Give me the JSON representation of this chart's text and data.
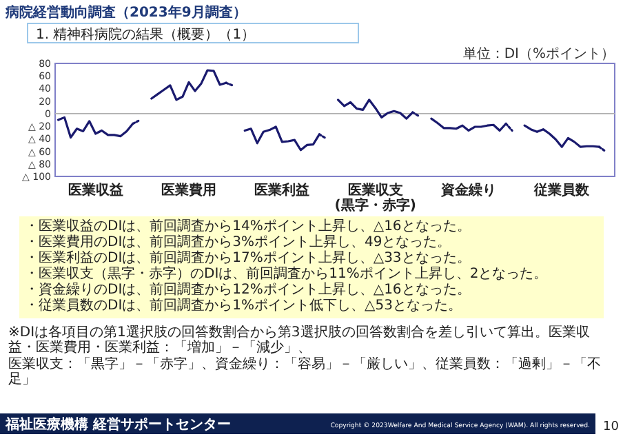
{
  "chart_data": {
    "type": "line",
    "title": "病院経営動向調査（2023年9月調査）",
    "subtitle": "1. 精神科病院の結果（概要）（1）",
    "categories": [
      null,
      null,
      null,
      null,
      null,
      null,
      "医業収益",
      null,
      null,
      null,
      null,
      null,
      null,
      null,
      null,
      null,
      null,
      null,
      null,
      null,
      null,
      "医業費用",
      null,
      null,
      null,
      null,
      null,
      null,
      null,
      null,
      null,
      null,
      null,
      null,
      null,
      null,
      "医業利益",
      null,
      null,
      null,
      null,
      null,
      null,
      null,
      null,
      null,
      null,
      null,
      null,
      null,
      null,
      "医業収支\n(黒字・赤字)",
      null,
      null,
      null,
      null,
      null,
      null,
      null,
      null,
      null,
      null,
      null,
      null,
      null,
      null,
      "資金繰り",
      null,
      null,
      null,
      null,
      null,
      null,
      null,
      null,
      null,
      null,
      null,
      null,
      null,
      null,
      "従業員数",
      null,
      null,
      null,
      null,
      null,
      null,
      null,
      null
    ],
    "ylim": [
      -100,
      80
    ],
    "yticks": [
      80,
      60,
      40,
      20,
      0,
      {
        "value": -20,
        "label": "△ 20"
      },
      {
        "value": -40,
        "label": "△ 40"
      },
      {
        "value": -60,
        "label": "△ 60"
      },
      {
        "value": -80,
        "label": "△ 80"
      },
      {
        "value": -100,
        "label": "△ 100"
      }
    ],
    "ref_lines": [
      {
        "axis": "y",
        "value": 0,
        "color": "#b0b0b0"
      }
    ],
    "series": [
      {
        "color": "#1a1a6e",
        "line_style": "solid",
        "values": [
          -10,
          -6,
          -38,
          -24,
          -28,
          -12,
          -32,
          -27,
          -34,
          -34,
          -36,
          -28,
          -16,
          null,
          null,
          null,
          null,
          null,
          null,
          null,
          null,
          null,
          null,
          null,
          null,
          null,
          null,
          null,
          null,
          null,
          null,
          null,
          null,
          null,
          null,
          null,
          null,
          null,
          null,
          null,
          null,
          null,
          null,
          null,
          null,
          null,
          null,
          null,
          null,
          null,
          null,
          null,
          null,
          null,
          null,
          null,
          null,
          null,
          null,
          null,
          null,
          null,
          null,
          null,
          null,
          null,
          null,
          null,
          null,
          null,
          null,
          null,
          null,
          null,
          null,
          null,
          null,
          null,
          null,
          null,
          null,
          null,
          null,
          null,
          null,
          null,
          null,
          null,
          null,
          null
        ]
      },
      {
        "color": "#1a1a6e",
        "line_style": "dotted",
        "values": [
          null,
          null,
          null,
          null,
          null,
          null,
          null,
          null,
          null,
          null,
          null,
          null,
          -16,
          -11,
          null,
          null,
          null,
          null,
          null,
          null,
          null,
          null,
          null,
          null,
          null,
          null,
          null,
          null,
          null,
          null,
          null,
          null,
          null,
          null,
          null,
          null,
          null,
          null,
          null,
          null,
          null,
          null,
          null,
          null,
          null,
          null,
          null,
          null,
          null,
          null,
          null,
          null,
          null,
          null,
          null,
          null,
          null,
          null,
          null,
          null,
          null,
          null,
          null,
          null,
          null,
          null,
          null,
          null,
          null,
          null,
          null,
          null,
          null,
          null,
          null,
          null,
          null,
          null,
          null,
          null,
          null,
          null,
          null,
          null,
          null,
          null,
          null,
          null,
          null,
          null
        ]
      },
      {
        "color": "#1a1a6e",
        "line_style": "solid",
        "values": [
          null,
          null,
          null,
          null,
          null,
          null,
          null,
          null,
          null,
          null,
          null,
          null,
          null,
          null,
          null,
          24,
          31,
          38,
          45,
          22,
          27,
          50,
          36,
          48,
          69,
          68,
          46,
          49,
          null,
          null,
          null,
          null,
          null,
          null,
          null,
          null,
          null,
          null,
          null,
          null,
          null,
          null,
          null,
          null,
          null,
          null,
          null,
          null,
          null,
          null,
          null,
          null,
          null,
          null,
          null,
          null,
          null,
          null,
          null,
          null,
          null,
          null,
          null,
          null,
          null,
          null,
          null,
          null,
          null,
          null,
          null,
          null,
          null,
          null,
          null,
          null,
          null,
          null,
          null,
          null,
          null,
          null,
          null,
          null,
          null,
          null,
          null,
          null,
          null,
          null
        ]
      },
      {
        "color": "#1a1a6e",
        "line_style": "dotted",
        "values": [
          null,
          null,
          null,
          null,
          null,
          null,
          null,
          null,
          null,
          null,
          null,
          null,
          null,
          null,
          null,
          null,
          null,
          null,
          null,
          null,
          null,
          null,
          null,
          null,
          null,
          null,
          null,
          49,
          45,
          null,
          null,
          null,
          null,
          null,
          null,
          null,
          null,
          null,
          null,
          null,
          null,
          null,
          null,
          null,
          null,
          null,
          null,
          null,
          null,
          null,
          null,
          null,
          null,
          null,
          null,
          null,
          null,
          null,
          null,
          null,
          null,
          null,
          null,
          null,
          null,
          null,
          null,
          null,
          null,
          null,
          null,
          null,
          null,
          null,
          null,
          null,
          null,
          null,
          null,
          null,
          null,
          null,
          null,
          null,
          null,
          null,
          null,
          null,
          null,
          null
        ]
      },
      {
        "color": "#1a1a6e",
        "line_style": "solid",
        "values": [
          null,
          null,
          null,
          null,
          null,
          null,
          null,
          null,
          null,
          null,
          null,
          null,
          null,
          null,
          null,
          null,
          null,
          null,
          null,
          null,
          null,
          null,
          null,
          null,
          null,
          null,
          null,
          null,
          null,
          null,
          -27,
          -24,
          -47,
          -29,
          -26,
          -21,
          -45,
          -44,
          -42,
          -58,
          -50,
          -49,
          -33,
          null,
          null,
          null,
          null,
          null,
          null,
          null,
          null,
          null,
          null,
          null,
          null,
          null,
          null,
          null,
          null,
          null,
          null,
          null,
          null,
          null,
          null,
          null,
          null,
          null,
          null,
          null,
          null,
          null,
          null,
          null,
          null,
          null,
          null,
          null,
          null,
          null,
          null,
          null,
          null,
          null,
          null,
          null,
          null,
          null,
          null,
          null
        ]
      },
      {
        "color": "#1a1a6e",
        "line_style": "dotted",
        "values": [
          null,
          null,
          null,
          null,
          null,
          null,
          null,
          null,
          null,
          null,
          null,
          null,
          null,
          null,
          null,
          null,
          null,
          null,
          null,
          null,
          null,
          null,
          null,
          null,
          null,
          null,
          null,
          null,
          null,
          null,
          null,
          null,
          null,
          null,
          null,
          null,
          null,
          null,
          null,
          null,
          null,
          null,
          -33,
          -39,
          null,
          null,
          null,
          null,
          null,
          null,
          null,
          null,
          null,
          null,
          null,
          null,
          null,
          null,
          null,
          null,
          null,
          null,
          null,
          null,
          null,
          null,
          null,
          null,
          null,
          null,
          null,
          null,
          null,
          null,
          null,
          null,
          null,
          null,
          null,
          null,
          null,
          null,
          null,
          null,
          null,
          null,
          null,
          null,
          null,
          null
        ]
      },
      {
        "color": "#1a1a6e",
        "line_style": "solid",
        "values": [
          null,
          null,
          null,
          null,
          null,
          null,
          null,
          null,
          null,
          null,
          null,
          null,
          null,
          null,
          null,
          null,
          null,
          null,
          null,
          null,
          null,
          null,
          null,
          null,
          null,
          null,
          null,
          null,
          null,
          null,
          null,
          null,
          null,
          null,
          null,
          null,
          null,
          null,
          null,
          null,
          null,
          null,
          null,
          null,
          null,
          22,
          12,
          18,
          8,
          6,
          22,
          9,
          -6,
          1,
          4,
          1,
          -8,
          2,
          null,
          null,
          null,
          null,
          null,
          null,
          null,
          null,
          null,
          null,
          null,
          null,
          null,
          null,
          null,
          null,
          null,
          null,
          null,
          null,
          null,
          null,
          null,
          null,
          null,
          null,
          null,
          null,
          null,
          null,
          null,
          null
        ]
      },
      {
        "color": "#1a1a6e",
        "line_style": "dotted",
        "values": [
          null,
          null,
          null,
          null,
          null,
          null,
          null,
          null,
          null,
          null,
          null,
          null,
          null,
          null,
          null,
          null,
          null,
          null,
          null,
          null,
          null,
          null,
          null,
          null,
          null,
          null,
          null,
          null,
          null,
          null,
          null,
          null,
          null,
          null,
          null,
          null,
          null,
          null,
          null,
          null,
          null,
          null,
          null,
          null,
          null,
          null,
          null,
          null,
          null,
          null,
          null,
          null,
          null,
          null,
          null,
          null,
          null,
          2,
          -4,
          null,
          null,
          null,
          null,
          null,
          null,
          null,
          null,
          null,
          null,
          null,
          null,
          null,
          null,
          null,
          null,
          null,
          null,
          null,
          null,
          null,
          null,
          null,
          null,
          null,
          null,
          null,
          null,
          null,
          null,
          null
        ]
      },
      {
        "color": "#1a1a6e",
        "line_style": "solid",
        "values": [
          null,
          null,
          null,
          null,
          null,
          null,
          null,
          null,
          null,
          null,
          null,
          null,
          null,
          null,
          null,
          null,
          null,
          null,
          null,
          null,
          null,
          null,
          null,
          null,
          null,
          null,
          null,
          null,
          null,
          null,
          null,
          null,
          null,
          null,
          null,
          null,
          null,
          null,
          null,
          null,
          null,
          null,
          null,
          null,
          null,
          null,
          null,
          null,
          null,
          null,
          null,
          null,
          null,
          null,
          null,
          null,
          null,
          null,
          null,
          null,
          -8,
          -15,
          -23,
          -23,
          -24,
          -19,
          -27,
          -21,
          -21,
          -19,
          -18,
          -27,
          -16,
          null,
          null,
          null,
          null,
          null,
          null,
          null,
          null,
          null,
          null,
          null,
          null,
          null,
          null,
          null,
          null,
          null
        ]
      },
      {
        "color": "#1a1a6e",
        "line_style": "dotted",
        "values": [
          null,
          null,
          null,
          null,
          null,
          null,
          null,
          null,
          null,
          null,
          null,
          null,
          null,
          null,
          null,
          null,
          null,
          null,
          null,
          null,
          null,
          null,
          null,
          null,
          null,
          null,
          null,
          null,
          null,
          null,
          null,
          null,
          null,
          null,
          null,
          null,
          null,
          null,
          null,
          null,
          null,
          null,
          null,
          null,
          null,
          null,
          null,
          null,
          null,
          null,
          null,
          null,
          null,
          null,
          null,
          null,
          null,
          null,
          null,
          null,
          null,
          null,
          null,
          null,
          null,
          null,
          null,
          null,
          null,
          null,
          null,
          null,
          -16,
          -27,
          null,
          null,
          null,
          null,
          null,
          null,
          null,
          null,
          null,
          null,
          null,
          null,
          null,
          null,
          null,
          null
        ]
      },
      {
        "color": "#1a1a6e",
        "line_style": "solid",
        "values": [
          null,
          null,
          null,
          null,
          null,
          null,
          null,
          null,
          null,
          null,
          null,
          null,
          null,
          null,
          null,
          null,
          null,
          null,
          null,
          null,
          null,
          null,
          null,
          null,
          null,
          null,
          null,
          null,
          null,
          null,
          null,
          null,
          null,
          null,
          null,
          null,
          null,
          null,
          null,
          null,
          null,
          null,
          null,
          null,
          null,
          null,
          null,
          null,
          null,
          null,
          null,
          null,
          null,
          null,
          null,
          null,
          null,
          null,
          null,
          null,
          null,
          null,
          null,
          null,
          null,
          null,
          null,
          null,
          null,
          null,
          null,
          null,
          null,
          null,
          null,
          -19,
          -25,
          -29,
          -25,
          -32,
          -41,
          -53,
          -39,
          -45,
          -53,
          -52,
          -52,
          -53,
          null,
          null
        ]
      },
      {
        "color": "#1a1a6e",
        "line_style": "dotted",
        "values": [
          null,
          null,
          null,
          null,
          null,
          null,
          null,
          null,
          null,
          null,
          null,
          null,
          null,
          null,
          null,
          null,
          null,
          null,
          null,
          null,
          null,
          null,
          null,
          null,
          null,
          null,
          null,
          null,
          null,
          null,
          null,
          null,
          null,
          null,
          null,
          null,
          null,
          null,
          null,
          null,
          null,
          null,
          null,
          null,
          null,
          null,
          null,
          null,
          null,
          null,
          null,
          null,
          null,
          null,
          null,
          null,
          null,
          null,
          null,
          null,
          null,
          null,
          null,
          null,
          null,
          null,
          null,
          null,
          null,
          null,
          null,
          null,
          null,
          null,
          null,
          null,
          null,
          null,
          null,
          null,
          null,
          null,
          null,
          null,
          null,
          null,
          null,
          -53,
          -60,
          null
        ]
      }
    ],
    "annotations": [
      "単位：DI（%ポイント）",
      "・医業収益のDIは、前回調査から14%ポイント上昇し、△16となった。",
      "・医業費用のDIは、前回調査から3%ポイント上昇し、49となった。",
      "・医業利益のDIは、前回調査から17%ポイント上昇し、△33となった。",
      "・医業収支（黒字・赤字）のDIは、前回調査から11%ポイント上昇し、2となった。",
      "・資金繰りのDIは、前回調査から12%ポイント上昇し、△16となった。",
      "・従業員数のDIは、前回調査から1%ポイント低下し、△53となった。",
      "※DIは各項目の第1選択肢の回答数割合から第3選択肢の回答数割合を差し引いて算出。医業収益・医業費用・医業利益：「増加」－「減少」、",
      "医業収支：「黒字」－「赤字」、資金繰り：「容易」－「厳しい」、従業員数：「過剰」－「不足」",
      "福祉医療機構 経営サポートセンター",
      "Copyright © 2023Welfare And Medical Service Agency (WAM). All rights reserved.",
      "10"
    ]
  }
}
